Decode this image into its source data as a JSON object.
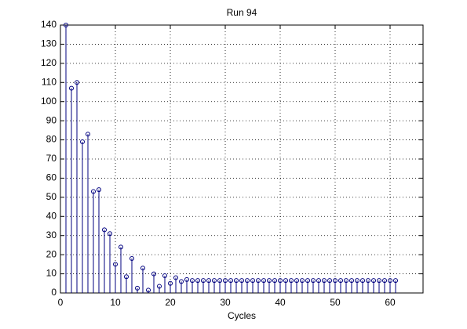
{
  "chart_data": {
    "type": "stem",
    "title": "Run 94",
    "x_label": "Cycles",
    "x": [
      1,
      2,
      3,
      4,
      5,
      6,
      7,
      8,
      9,
      10,
      11,
      12,
      13,
      14,
      15,
      16,
      17,
      18,
      19,
      20,
      21,
      22,
      23,
      24,
      25,
      26,
      27,
      28,
      29,
      30,
      31,
      32,
      33,
      34,
      35,
      36,
      37,
      38,
      39,
      40,
      41,
      42,
      43,
      44,
      45,
      46,
      47,
      48,
      49,
      50,
      51,
      52,
      53,
      54,
      55,
      56,
      57,
      58,
      59,
      60,
      61
    ],
    "values": [
      140,
      107,
      110,
      79,
      83,
      53,
      54,
      33,
      31,
      15,
      24,
      8.5,
      18,
      2.5,
      13,
      1.5,
      10,
      3.5,
      9,
      5,
      8,
      6,
      7,
      6.5,
      6.5,
      6.5,
      6.5,
      6.5,
      6.5,
      6.5,
      6.5,
      6.5,
      6.5,
      6.5,
      6.5,
      6.5,
      6.5,
      6.5,
      6.5,
      6.5,
      6.5,
      6.5,
      6.5,
      6.5,
      6.5,
      6.5,
      6.5,
      6.5,
      6.5,
      6.5,
      6.5,
      6.5,
      6.5,
      6.5,
      6.5,
      6.5,
      6.5,
      6.5,
      6.5,
      6.5,
      6.5
    ],
    "color": "#00007f",
    "xlim": [
      0,
      66
    ],
    "xticks": [
      0,
      10,
      20,
      30,
      40,
      50,
      60
    ],
    "ylim": [
      0,
      140
    ],
    "yticks": [
      0,
      10,
      20,
      30,
      40,
      50,
      60,
      70,
      80,
      90,
      100,
      110,
      120,
      130,
      140
    ],
    "grid": true
  }
}
